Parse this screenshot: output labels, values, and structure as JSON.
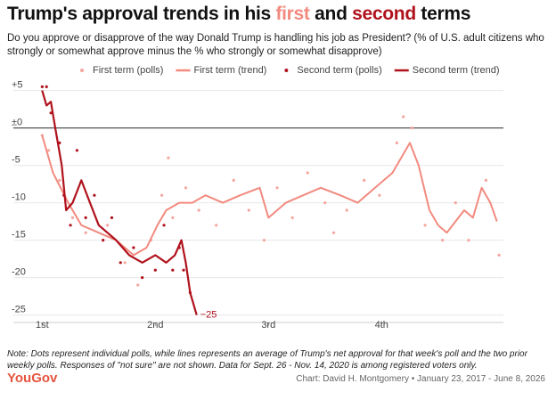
{
  "chart_data": {
    "type": "line",
    "title_parts": [
      "Trump's approval trends in his ",
      "first",
      " and ",
      "second",
      " terms"
    ],
    "subtitle": "Do you approve or disapprove of the way Donald Trump is handling his job as President? (% of U.S. adult citizens who strongly or somewhat approve minus the % who strongly or somewhat disapprove)",
    "legend": "top",
    "grid": true,
    "zero_line": true,
    "xlim": [
      -3,
      212
    ],
    "xticks": [
      {
        "value": 0,
        "label": "1st"
      },
      {
        "value": 52,
        "label": "2nd"
      },
      {
        "value": 104,
        "label": "3rd"
      },
      {
        "value": 156,
        "label": "4th"
      }
    ],
    "ylim": [
      -26,
      6.5
    ],
    "yticks": [
      -25,
      -20,
      -15,
      -10,
      -5,
      {
        "value": 0,
        "label": "±0"
      },
      {
        "value": 5,
        "label": "+5"
      }
    ],
    "series": [
      {
        "name": "First term (polls)",
        "kind": "scatter",
        "color": "#f6a59d",
        "x": [
          0,
          3,
          8,
          14,
          20,
          30,
          38,
          44,
          50,
          55,
          58,
          60,
          66,
          72,
          80,
          88,
          95,
          102,
          108,
          115,
          122,
          130,
          134,
          140,
          148,
          155,
          163,
          166,
          170,
          176,
          184,
          190,
          196,
          204,
          210
        ],
        "values": [
          -1,
          -3,
          -7,
          -12,
          -14,
          -13,
          -18,
          -21,
          -15,
          -9,
          -4,
          -12,
          -8,
          -11,
          -13,
          -7,
          -11,
          -15,
          -8,
          -12,
          -6,
          -10,
          -14,
          -11,
          -7,
          -9,
          -2,
          1.5,
          0,
          -13,
          -15,
          -10,
          -15,
          -7,
          -17
        ]
      },
      {
        "name": "First term (trend)",
        "kind": "line",
        "color": "#f28a7f",
        "x": [
          0,
          5,
          12,
          18,
          26,
          34,
          42,
          48,
          53,
          57,
          63,
          69,
          75,
          83,
          91,
          100,
          104,
          112,
          120,
          128,
          137,
          145,
          153,
          161,
          167,
          169,
          173,
          178,
          182,
          186,
          194,
          198,
          202,
          206,
          209
        ],
        "values": [
          -1,
          -6,
          -10,
          -13,
          -14,
          -15,
          -17,
          -16,
          -13,
          -11,
          -10,
          -10,
          -9,
          -10,
          -9,
          -8,
          -12,
          -10,
          -9,
          -8,
          -9,
          -10,
          -8,
          -6,
          -3,
          -2,
          -5,
          -11,
          -13,
          -14,
          -11,
          -12,
          -8,
          -10,
          -12.5
        ]
      },
      {
        "name": "Second term (polls)",
        "kind": "scatter",
        "color": "#b0121c",
        "x": [
          0,
          2,
          4,
          8,
          10,
          13,
          16,
          20,
          24,
          28,
          32,
          36,
          42,
          46,
          52,
          56,
          60,
          63,
          65,
          68
        ],
        "values": [
          5.5,
          5.5,
          2,
          -2,
          -9,
          -13,
          -3,
          -12,
          -9,
          -15,
          -12,
          -18,
          -16,
          -20,
          -19,
          -13,
          -19,
          -16,
          -19,
          -22
        ]
      },
      {
        "name": "Second term (trend)",
        "kind": "line",
        "color": "#b0121c",
        "x": [
          0,
          2,
          4,
          6,
          9,
          11,
          14,
          18,
          22,
          26,
          30,
          34,
          40,
          46,
          52,
          57,
          61,
          64,
          66,
          68,
          71
        ],
        "values": [
          5,
          3,
          3.5,
          0,
          -5,
          -11,
          -10,
          -7,
          -10,
          -13,
          -14,
          -15,
          -17,
          -18,
          -17,
          -18,
          -17,
          -15,
          -18,
          -22,
          -25
        ]
      }
    ],
    "annotations": [
      {
        "text": "−25",
        "x": 71,
        "y": -25
      }
    ],
    "note": "Note: Dots represent individual polls, while lines represents an average of Trump's net approval for that week's poll and the two prior weekly polls. Responses of \"not sure\" are not shown. Data for Sept. 26 - Nov. 14, 2020 is among registered voters only.",
    "brand": "YouGov",
    "source": "Chart: David H. Montgomery • January 23, 2017 - June 8, 2026"
  }
}
